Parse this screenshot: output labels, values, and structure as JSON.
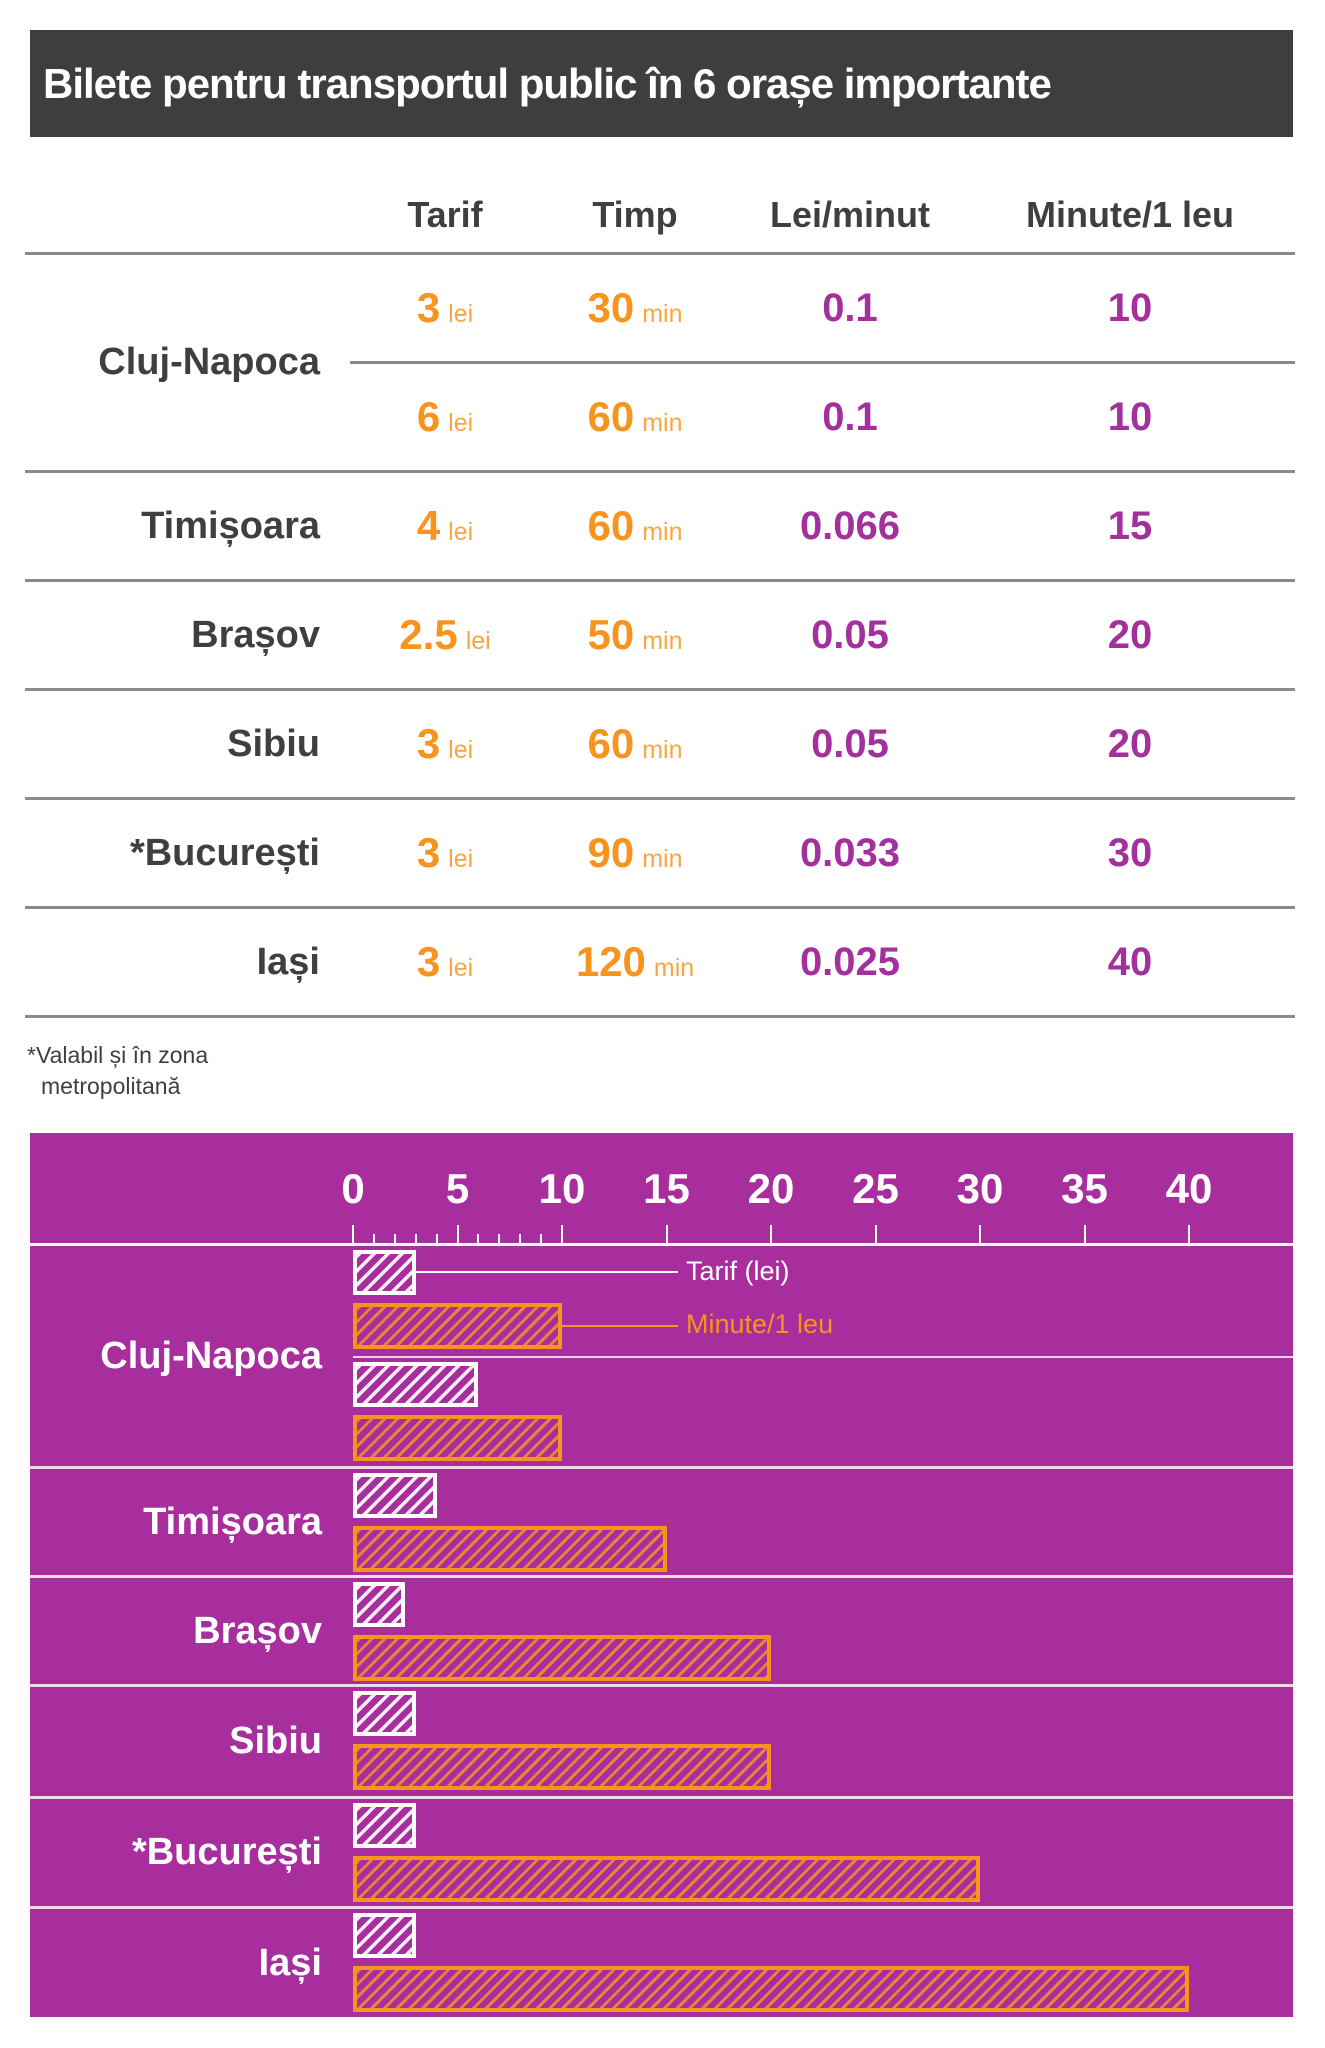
{
  "title": "Bilete pentru transportul public în 6 orașe importante",
  "table": {
    "headers": [
      "Tarif",
      "Timp",
      "Lei/minut",
      "Minute/1 leu"
    ],
    "rows": [
      {
        "city": "Cluj-Napoca",
        "tickets": [
          {
            "tarif": "3",
            "tarif_unit": "lei",
            "timp": "30",
            "timp_unit": "min",
            "lei_minut": "0.1",
            "minute_leu": "10"
          },
          {
            "tarif": "6",
            "tarif_unit": "lei",
            "timp": "60",
            "timp_unit": "min",
            "lei_minut": "0.1",
            "minute_leu": "10"
          }
        ]
      },
      {
        "city": "Timișoara",
        "tickets": [
          {
            "tarif": "4",
            "tarif_unit": "lei",
            "timp": "60",
            "timp_unit": "min",
            "lei_minut": "0.066",
            "minute_leu": "15"
          }
        ]
      },
      {
        "city": "Brașov",
        "tickets": [
          {
            "tarif": "2.5",
            "tarif_unit": "lei",
            "timp": "50",
            "timp_unit": "min",
            "lei_minut": "0.05",
            "minute_leu": "20"
          }
        ]
      },
      {
        "city": "Sibiu",
        "tickets": [
          {
            "tarif": "3",
            "tarif_unit": "lei",
            "timp": "60",
            "timp_unit": "min",
            "lei_minut": "0.05",
            "minute_leu": "20"
          }
        ]
      },
      {
        "city": "*București",
        "tickets": [
          {
            "tarif": "3",
            "tarif_unit": "lei",
            "timp": "90",
            "timp_unit": "min",
            "lei_minut": "0.033",
            "minute_leu": "30"
          }
        ]
      },
      {
        "city": "Iași",
        "tickets": [
          {
            "tarif": "3",
            "tarif_unit": "lei",
            "timp": "120",
            "timp_unit": "min",
            "lei_minut": "0.025",
            "minute_leu": "40"
          }
        ]
      }
    ]
  },
  "footnote": {
    "line1": "*Valabil și în zona",
    "line2": "metropolitană"
  },
  "colors": {
    "banner": "#3e3e40",
    "orange": "#f7941e",
    "purple": "#a3309c",
    "chart_background": "#a82d9d"
  },
  "chart_data": {
    "type": "bar",
    "orientation": "horizontal",
    "title": "Bilete pentru transportul public în 6 orașe importante",
    "axis": {
      "min": 0,
      "max": 40,
      "major_step": 5,
      "minor_step": 1,
      "minor_until": 10
    },
    "series_names": [
      "Tarif (lei)",
      "Minute/1 leu"
    ],
    "legend_position": "inside-top",
    "grid": false,
    "groups": [
      {
        "label": "Cluj-Napoca",
        "pairs": [
          {
            "tarif": 3,
            "minute": 10
          },
          {
            "tarif": 6,
            "minute": 10
          }
        ]
      },
      {
        "label": "Timișoara",
        "pairs": [
          {
            "tarif": 4,
            "minute": 15
          }
        ]
      },
      {
        "label": "Brașov",
        "pairs": [
          {
            "tarif": 2.5,
            "minute": 20
          }
        ]
      },
      {
        "label": "Sibiu",
        "pairs": [
          {
            "tarif": 3,
            "minute": 20
          }
        ]
      },
      {
        "label": "*București",
        "pairs": [
          {
            "tarif": 3,
            "minute": 30
          }
        ]
      },
      {
        "label": "Iași",
        "pairs": [
          {
            "tarif": 3,
            "minute": 40
          }
        ]
      }
    ]
  }
}
